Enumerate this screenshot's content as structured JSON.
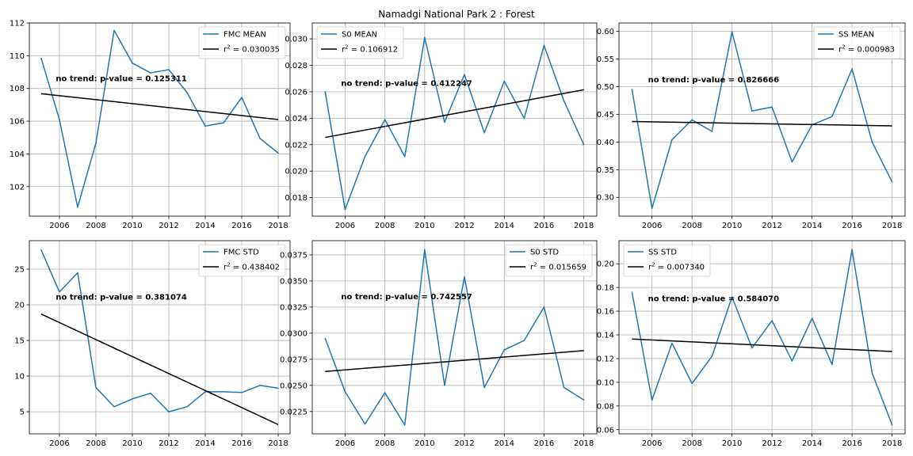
{
  "figure": {
    "suptitle": "Namadgi National Park 2 : Forest"
  },
  "colors": {
    "series": "#1f77b4",
    "trend": "#000000",
    "grid": "#b0b0b0"
  },
  "chart_data": [
    {
      "type": "line",
      "x": [
        2005,
        2006,
        2007,
        2008,
        2009,
        2010,
        2011,
        2012,
        2013,
        2014,
        2015,
        2016,
        2017,
        2018
      ],
      "series": [
        {
          "name": "FMC MEAN",
          "values": [
            109.85,
            106.1,
            100.75,
            104.65,
            111.55,
            109.55,
            108.95,
            109.15,
            107.75,
            105.7,
            105.9,
            107.45,
            104.95,
            104.05
          ]
        },
        {
          "name": "r² = 0.030035",
          "values": [
            107.68,
            106.1
          ],
          "x": [
            2005,
            2018
          ]
        }
      ],
      "annotation": "no trend: p-value = 0.125311",
      "legend": [
        "FMC MEAN",
        "r",
        "2",
        " = 0.030035"
      ],
      "xticks": [
        2006,
        2008,
        2010,
        2012,
        2014,
        2016,
        2018
      ],
      "yticks": [
        102,
        104,
        106,
        108,
        110,
        112
      ],
      "ytick_labels": [
        "102",
        "104",
        "106",
        "108",
        "110",
        "112"
      ],
      "xlim": [
        2004.35,
        2018.65
      ],
      "ylim": [
        100.2,
        112.0
      ],
      "grid": true,
      "legend_position": "top-right"
    },
    {
      "type": "line",
      "x": [
        2005,
        2006,
        2007,
        2008,
        2009,
        2010,
        2011,
        2012,
        2013,
        2014,
        2015,
        2016,
        2017,
        2018
      ],
      "series": [
        {
          "name": "S0 MEAN",
          "values": [
            0.026,
            0.0171,
            0.0211,
            0.0239,
            0.0211,
            0.0301,
            0.0237,
            0.0273,
            0.0229,
            0.0268,
            0.024,
            0.0295,
            0.0253,
            0.022
          ]
        },
        {
          "name": "r² = 0.106912",
          "values": [
            0.02255,
            0.02615
          ],
          "x": [
            2005,
            2018
          ]
        }
      ],
      "annotation": "no trend: p-value = 0.412247",
      "legend": [
        "S0 MEAN",
        "r",
        "2",
        " = 0.106912"
      ],
      "xticks": [
        2006,
        2008,
        2010,
        2012,
        2014,
        2016,
        2018
      ],
      "yticks": [
        0.018,
        0.02,
        0.022,
        0.024,
        0.026,
        0.028,
        0.03
      ],
      "ytick_labels": [
        "0.018",
        "0.020",
        "0.022",
        "0.024",
        "0.026",
        "0.028",
        "0.030"
      ],
      "xlim": [
        2004.35,
        2018.65
      ],
      "ylim": [
        0.0166,
        0.0312
      ],
      "grid": true,
      "legend_position": "top-left"
    },
    {
      "type": "line",
      "x": [
        2005,
        2006,
        2007,
        2008,
        2009,
        2010,
        2011,
        2012,
        2013,
        2014,
        2015,
        2016,
        2017,
        2018
      ],
      "series": [
        {
          "name": "SS MEAN",
          "values": [
            0.495,
            0.28,
            0.404,
            0.44,
            0.419,
            0.599,
            0.456,
            0.463,
            0.364,
            0.431,
            0.446,
            0.532,
            0.4,
            0.328
          ]
        },
        {
          "name": "r² = 0.000983",
          "values": [
            0.437,
            0.429
          ],
          "x": [
            2005,
            2018
          ]
        }
      ],
      "annotation": "no trend: p-value = 0.826666",
      "legend": [
        "SS MEAN",
        "r",
        "2",
        " = 0.000983"
      ],
      "xticks": [
        2006,
        2008,
        2010,
        2012,
        2014,
        2016,
        2018
      ],
      "yticks": [
        0.3,
        0.35,
        0.4,
        0.45,
        0.5,
        0.55,
        0.6
      ],
      "ytick_labels": [
        "0.30",
        "0.35",
        "0.40",
        "0.45",
        "0.50",
        "0.55",
        "0.60"
      ],
      "xlim": [
        2004.35,
        2018.65
      ],
      "ylim": [
        0.266,
        0.615
      ],
      "grid": true,
      "legend_position": "top-right"
    },
    {
      "type": "line",
      "x": [
        2005,
        2006,
        2007,
        2008,
        2009,
        2010,
        2011,
        2012,
        2013,
        2014,
        2015,
        2016,
        2017,
        2018
      ],
      "series": [
        {
          "name": "FMC STD",
          "values": [
            27.7,
            21.8,
            24.5,
            8.4,
            5.7,
            6.8,
            7.6,
            5.0,
            5.7,
            7.8,
            7.8,
            7.7,
            8.7,
            8.3
          ]
        },
        {
          "name": "r² = 0.438402",
          "values": [
            18.7,
            3.2
          ],
          "x": [
            2005,
            2018
          ]
        }
      ],
      "annotation": "no trend: p-value = 0.381074",
      "legend": [
        "FMC STD",
        "r",
        "2",
        " = 0.438402"
      ],
      "xticks": [
        2006,
        2008,
        2010,
        2012,
        2014,
        2016,
        2018
      ],
      "yticks": [
        5,
        10,
        15,
        20,
        25
      ],
      "ytick_labels": [
        "5",
        "10",
        "15",
        "20",
        "25"
      ],
      "xlim": [
        2004.35,
        2018.65
      ],
      "ylim": [
        1.9,
        29.0
      ],
      "grid": true,
      "legend_position": "top-right"
    },
    {
      "type": "line",
      "x": [
        2005,
        2006,
        2007,
        2008,
        2009,
        2010,
        2011,
        2012,
        2013,
        2014,
        2015,
        2016,
        2017,
        2018
      ],
      "series": [
        {
          "name": "S0 STD",
          "values": [
            0.0295,
            0.0244,
            0.0213,
            0.0243,
            0.0212,
            0.038,
            0.025,
            0.0354,
            0.0248,
            0.0284,
            0.0293,
            0.0325,
            0.0248,
            0.0236
          ]
        },
        {
          "name": "r² = 0.015659",
          "values": [
            0.02633,
            0.02833
          ],
          "x": [
            2005,
            2018
          ]
        }
      ],
      "annotation": "no trend: p-value = 0.742557",
      "legend": [
        "S0 STD",
        "r",
        "2",
        " = 0.015659"
      ],
      "xticks": [
        2006,
        2008,
        2010,
        2012,
        2014,
        2016,
        2018
      ],
      "yticks": [
        0.0225,
        0.025,
        0.0275,
        0.03,
        0.0325,
        0.035,
        0.0375
      ],
      "ytick_labels": [
        "0.0225",
        "0.0250",
        "0.0275",
        "0.0300",
        "0.0325",
        "0.0350",
        "0.0375"
      ],
      "xlim": [
        2004.35,
        2018.65
      ],
      "ylim": [
        0.02036,
        0.03886
      ],
      "grid": true,
      "legend_position": "top-right"
    },
    {
      "type": "line",
      "x": [
        2005,
        2006,
        2007,
        2008,
        2009,
        2010,
        2011,
        2012,
        2013,
        2014,
        2015,
        2016,
        2017,
        2018
      ],
      "series": [
        {
          "name": "SS STD",
          "values": [
            0.176,
            0.085,
            0.133,
            0.099,
            0.122,
            0.172,
            0.129,
            0.152,
            0.118,
            0.154,
            0.115,
            0.212,
            0.108,
            0.064
          ]
        },
        {
          "name": "r² = 0.007340",
          "values": [
            0.1365,
            0.126
          ],
          "x": [
            2005,
            2018
          ]
        }
      ],
      "annotation": "no trend: p-value = 0.584070",
      "legend": [
        "SS STD",
        "r",
        "2",
        " = 0.007340"
      ],
      "xticks": [
        2006,
        2008,
        2010,
        2012,
        2014,
        2016,
        2018
      ],
      "yticks": [
        0.06,
        0.08,
        0.1,
        0.12,
        0.14,
        0.16,
        0.18,
        0.2
      ],
      "ytick_labels": [
        "0.06",
        "0.08",
        "0.10",
        "0.12",
        "0.14",
        "0.16",
        "0.18",
        "0.20"
      ],
      "xlim": [
        2004.35,
        2018.65
      ],
      "ylim": [
        0.0565,
        0.2195
      ],
      "grid": true,
      "legend_position": "top-left"
    }
  ]
}
